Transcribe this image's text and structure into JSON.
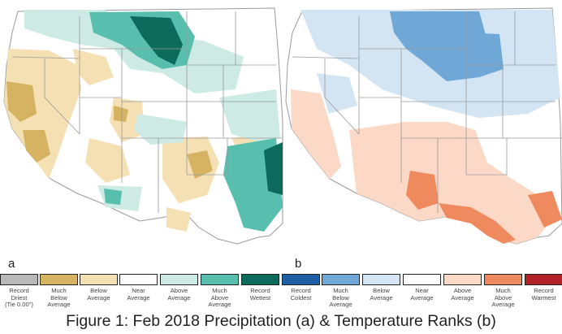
{
  "figure": {
    "caption": "Figure 1: Feb 2018 Precipitation (a) & Temperature Ranks (b)",
    "panel_a_label": "a",
    "panel_b_label": "b"
  },
  "legend": [
    {
      "text": "Record\nDriest\n(Tie 0.00\")",
      "color": "#b9b9b9"
    },
    {
      "text": "Much\nBelow\nAverage",
      "color": "#d6b263"
    },
    {
      "text": "Below\nAverage",
      "color": "#f4e0b3"
    },
    {
      "text": "Near\nAverage",
      "color": "#ffffff"
    },
    {
      "text": "Above\nAverage",
      "color": "#cdeae5"
    },
    {
      "text": "Much\nAbove\nAverage",
      "color": "#58bfae"
    },
    {
      "text": "Record\nWettest",
      "color": "#0c6b5a"
    },
    {
      "text": "Record\nColdest",
      "color": "#1f5fa6"
    },
    {
      "text": "Much\nBelow\nAverage",
      "color": "#6fa7d6"
    },
    {
      "text": "Below\nAverage",
      "color": "#d3e5f2"
    },
    {
      "text": "Near\nAverage",
      "color": "#ffffff"
    },
    {
      "text": "Above\nAverage",
      "color": "#fcd8c6"
    },
    {
      "text": "Much\nAbove\nAverage",
      "color": "#ef8a5e"
    },
    {
      "text": "Record\nWarmest",
      "color": "#b22327"
    }
  ]
}
